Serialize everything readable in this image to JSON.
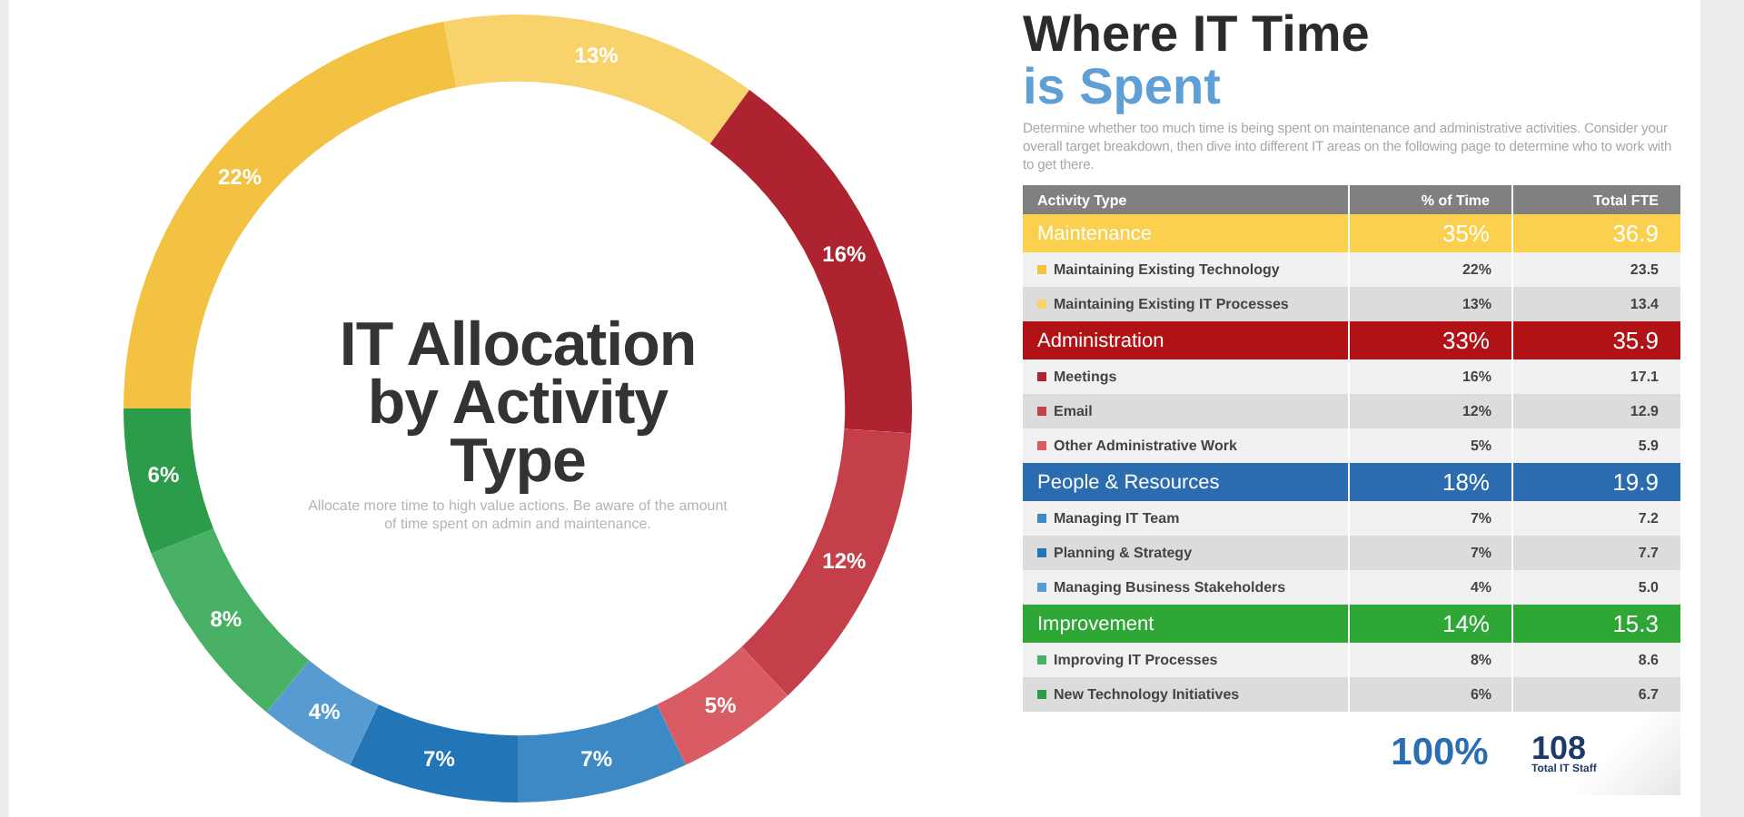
{
  "chart_data": [
    {
      "type": "donut",
      "title": "IT Allocation by Activity Type",
      "subtitle": "Allocate more time to high value actions. Be aware of the amount of time spent on admin and maintenance.",
      "legend": "right",
      "categories": [
        "Maintaining Existing Technology",
        "Maintaining Existing IT Processes",
        "Meetings",
        "Email",
        "Other Administrative Work",
        "Managing IT Team",
        "Planning & Strategy",
        "Managing Business Stakeholders",
        "Improving IT Processes",
        "New Technology Initiatives"
      ],
      "values": [
        22,
        13,
        16,
        12,
        5,
        7,
        7,
        4,
        8,
        6
      ],
      "colors": [
        "#f4c242",
        "#f8d36b",
        "#ae2330",
        "#c43f49",
        "#d95b63",
        "#3d89c5",
        "#2276b8",
        "#569cd2",
        "#48b165",
        "#2b9c4a"
      ],
      "value_labels": [
        "22%",
        "13%",
        "16%",
        "12%",
        "5%",
        "7%",
        "7%",
        "4%",
        "8%",
        "6%"
      ]
    },
    {
      "type": "other",
      "title": "Where IT Time is Spent",
      "subtitle": "Determine whether too much time is being spent on maintenance and administrative activities. Consider your overall target breakdown, then dive into different IT areas on the following page to determine who to work with to get there.",
      "categories": [
        "Activity Type",
        "% of Time",
        "Total FTE"
      ]
    },
    {
      "type": "other",
      "title": "Maintenance",
      "color": "#fcd04f",
      "totals": [
        "35%",
        "36.9"
      ],
      "data_labels": true,
      "series": [
        {
          "values": [
            23.5,
            13.4
          ]
        }
      ]
    },
    {
      "type": "other",
      "title": "Administration",
      "color": "#b01216",
      "totals": [
        "33%",
        "35.9"
      ],
      "data_labels": true,
      "series": [
        {
          "values": [
            17.1,
            12.9,
            5.9
          ]
        }
      ]
    },
    {
      "type": "other",
      "title": "People & Resources",
      "color": "#2b6cb0",
      "totals": [
        "18%",
        "19.9"
      ],
      "series": [
        {
          "values": [
            7.2,
            7.7,
            5.0
          ],
          "value_labels": [
            "7.2",
            "7.7",
            "5.0"
          ]
        }
      ]
    },
    {
      "type": "other",
      "title": "Improvement",
      "color": "#2fa737",
      "totals": [
        "14%",
        "15.3"
      ],
      "data_labels": true,
      "series": [
        {
          "values": [
            8.6,
            6.7
          ]
        }
      ]
    },
    {
      "type": "other",
      "totals": [
        "100%",
        "108"
      ],
      "annotations": [
        "Total IT Staff"
      ]
    }
  ]
}
